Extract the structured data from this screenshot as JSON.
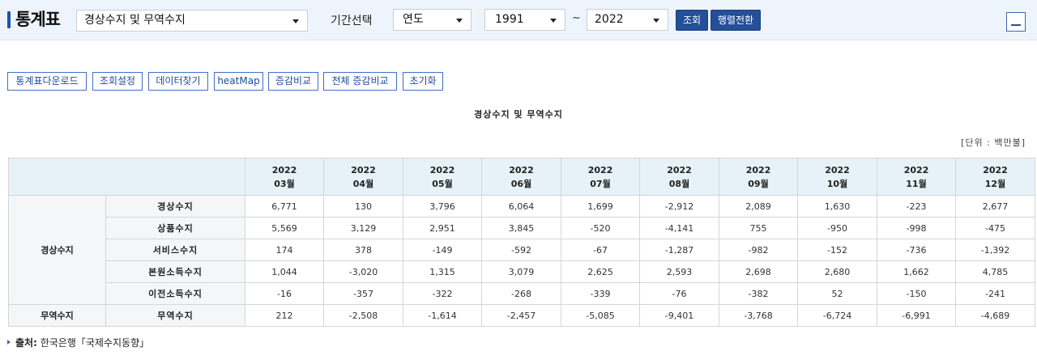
{
  "header": {
    "title": "통계표",
    "stat_select": "경상수지 및 무역수지",
    "period_label": "기간선택",
    "period_select": "연도",
    "from_select": "1991",
    "tilde": "~",
    "to_select": "2022",
    "query_button": "조회",
    "transpose_button": "행렬전환"
  },
  "toolbar": {
    "buttons": [
      "통계표다운로드",
      "조회설정",
      "데이터찾기",
      "heatMap",
      "증감비교",
      "전체 증감비교",
      "초기화"
    ]
  },
  "table_title": "경상수지 및 무역수지",
  "unit": "[단위 : 백만불]",
  "table": {
    "years": [
      "2022",
      "2022",
      "2022",
      "2022",
      "2022",
      "2022",
      "2022",
      "2022",
      "2022",
      "2022"
    ],
    "months": [
      "03월",
      "04월",
      "05월",
      "06월",
      "07월",
      "08월",
      "09월",
      "10월",
      "11월",
      "12월"
    ],
    "groups": [
      "경상수지",
      "무역수지"
    ],
    "rows": [
      {
        "label": "경상수지",
        "values": [
          "6,771",
          "130",
          "3,796",
          "6,064",
          "1,699",
          "-2,912",
          "2,089",
          "1,630",
          "-223",
          "2,677"
        ]
      },
      {
        "label": "상품수지",
        "values": [
          "5,569",
          "3,129",
          "2,951",
          "3,845",
          "-520",
          "-4,141",
          "755",
          "-950",
          "-998",
          "-475"
        ]
      },
      {
        "label": "서비스수지",
        "values": [
          "174",
          "378",
          "-149",
          "-592",
          "-67",
          "-1,287",
          "-982",
          "-152",
          "-736",
          "-1,392"
        ]
      },
      {
        "label": "본원소득수지",
        "values": [
          "1,044",
          "-3,020",
          "1,315",
          "3,079",
          "2,625",
          "2,593",
          "2,698",
          "2,680",
          "1,662",
          "4,785"
        ]
      },
      {
        "label": "이전소득수지",
        "values": [
          "-16",
          "-357",
          "-322",
          "-268",
          "-339",
          "-76",
          "-382",
          "52",
          "-150",
          "-241"
        ]
      },
      {
        "label": "무역수지",
        "values": [
          "212",
          "-2,508",
          "-1,614",
          "-2,457",
          "-5,085",
          "-9,401",
          "-3,768",
          "-6,724",
          "-6,991",
          "-4,689"
        ]
      }
    ]
  },
  "source": {
    "label": "출처:",
    "text": "한국은행「국제수지동향」"
  },
  "colors": {
    "accent": "#244f99",
    "header_bg": "#e6f2f7",
    "topbar_bg": "#eef4fb"
  }
}
